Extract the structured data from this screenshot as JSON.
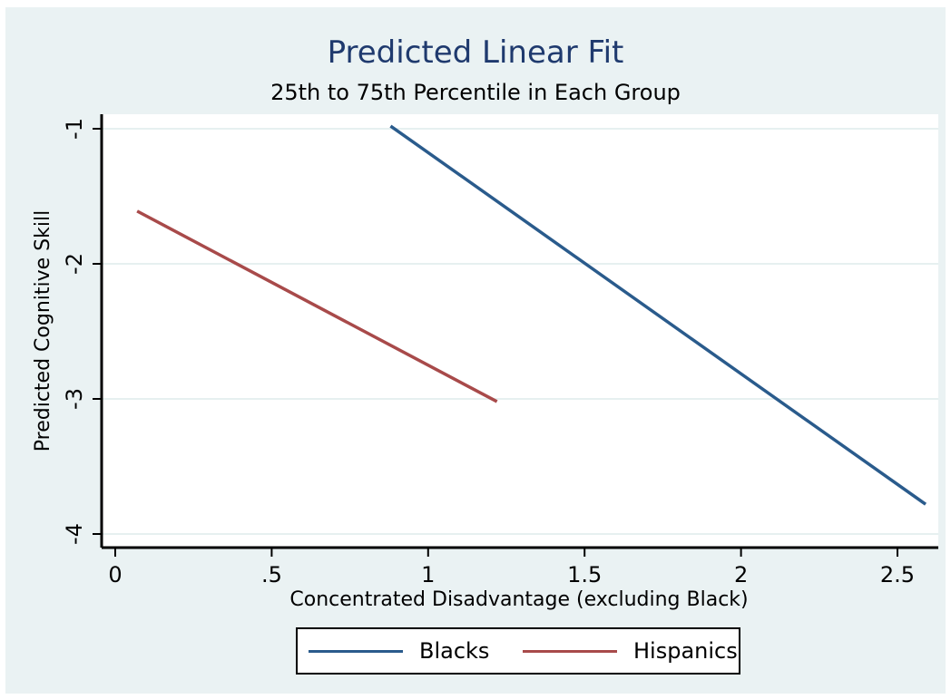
{
  "chart_data": {
    "type": "line",
    "title": "Predicted Linear Fit",
    "subtitle": "25th to 75th Percentile in Each Group",
    "xlabel": "Concentrated Disadvantage (excluding Black)",
    "ylabel": "Predicted Cognitive Skill",
    "xlim": [
      0,
      2.6
    ],
    "ylim": [
      -4,
      -1
    ],
    "xticks": [
      0,
      0.5,
      1,
      1.5,
      2,
      2.5
    ],
    "xtick_labels": [
      "0",
      ".5",
      "1",
      "1.5",
      "2",
      "2.5"
    ],
    "yticks": [
      -1,
      -2,
      -3,
      -4
    ],
    "ytick_labels": [
      "-1",
      "-2",
      "-3",
      "-4"
    ],
    "grid": "horizontal",
    "legend_position": "bottom",
    "series": [
      {
        "name": "Blacks",
        "color": "#2a5b8c",
        "x": [
          0.88,
          2.59
        ],
        "y": [
          -0.98,
          -3.78
        ]
      },
      {
        "name": "Hispanics",
        "color": "#a84a4a",
        "x": [
          0.07,
          1.22
        ],
        "y": [
          -1.61,
          -3.02
        ]
      }
    ]
  }
}
